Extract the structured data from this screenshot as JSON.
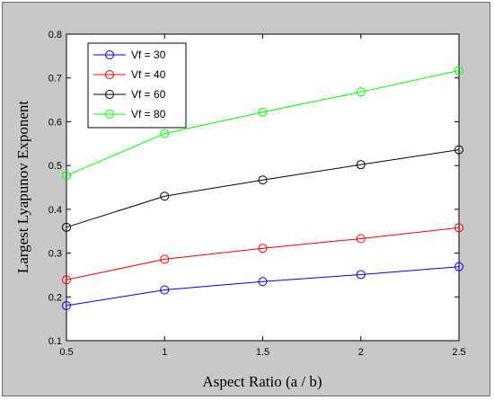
{
  "chart_data": {
    "type": "line",
    "title": "",
    "xlabel": "Aspect Ratio (a / b)",
    "ylabel": "Largest Lyapunov Exponent",
    "x": [
      0.5,
      1,
      1.5,
      2,
      2.5
    ],
    "xlim": [
      0.5,
      2.5
    ],
    "ylim": [
      0.1,
      0.8
    ],
    "xticks": [
      "0.5",
      "1",
      "1.5",
      "2",
      "2.5"
    ],
    "yticks": [
      "0.1",
      "0.2",
      "0.3",
      "0.4",
      "0.5",
      "0.6",
      "0.7",
      "0.8"
    ],
    "grid": false,
    "legend_position": "top-left",
    "series": [
      {
        "name": "Vf = 30",
        "color": "#0000ff",
        "values": [
          0.18,
          0.216,
          0.235,
          0.251,
          0.269
        ]
      },
      {
        "name": "Vf = 40",
        "color": "#ff0000",
        "values": [
          0.239,
          0.286,
          0.311,
          0.333,
          0.358
        ]
      },
      {
        "name": "Vf = 60",
        "color": "#000000",
        "values": [
          0.359,
          0.43,
          0.467,
          0.502,
          0.536
        ]
      },
      {
        "name": "Vf = 80",
        "color": "#00ff00",
        "values": [
          0.477,
          0.573,
          0.622,
          0.668,
          0.717
        ]
      }
    ]
  }
}
